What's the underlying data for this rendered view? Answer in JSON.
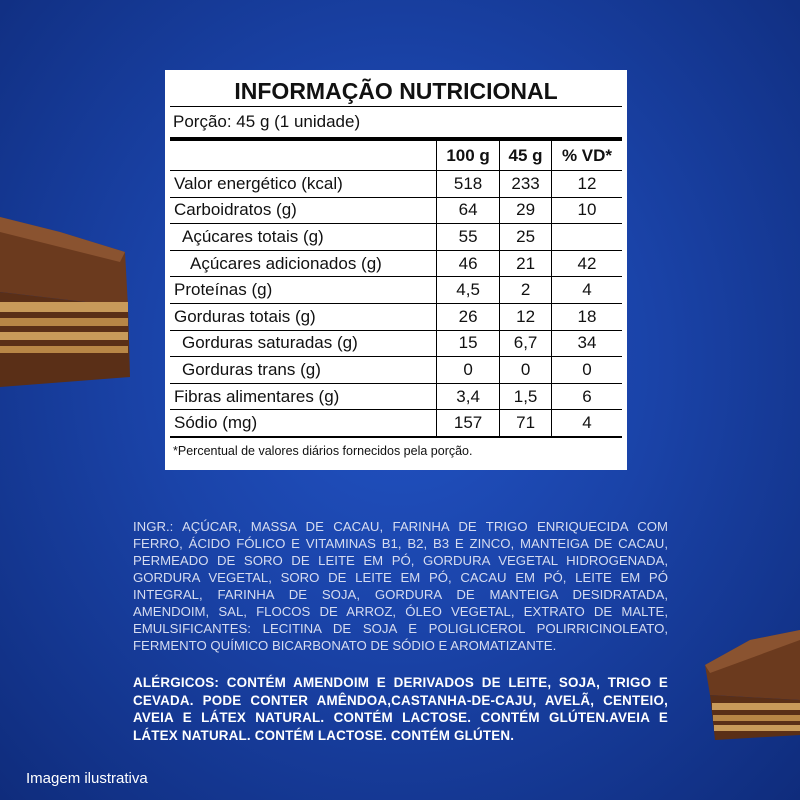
{
  "table": {
    "title": "INFORMAÇÃO NUTRICIONAL",
    "portion": "Porção: 45 g (1 unidade)",
    "header": [
      "100 g",
      "45 g",
      "% VD*"
    ],
    "rows": [
      [
        "Valor energético (kcal)",
        518,
        233,
        12
      ],
      [
        "Carboidratos (g)",
        64,
        29,
        10
      ],
      [
        "Açúcares totais (g)",
        55,
        25,
        null
      ],
      [
        "Açúcares adicionados (g)",
        46,
        21,
        42
      ],
      [
        "Proteínas (g)",
        "4,5",
        2,
        4
      ],
      [
        "Gorduras totais (g)",
        26,
        12,
        18
      ],
      [
        "Gorduras saturadas (g)",
        15,
        "6,7",
        34
      ],
      [
        "Gorduras trans (g)",
        0,
        0,
        0
      ],
      [
        "Fibras alimentares (g)",
        "3,4",
        "1,5",
        6
      ],
      [
        "Sódio (mg)",
        157,
        71,
        4
      ]
    ],
    "footnote": "*Percentual de valores diários fornecidos pela porção."
  },
  "ingredients": "INGR.: AÇÚCAR, MASSA DE CACAU, FARINHA DE TRIGO ENRIQUECIDA COM FERRO, ÁCIDO FÓLICO E VITAMINAS B1, B2, B3 E ZINCO, MANTEIGA DE CACAU, PERMEADO DE SORO DE LEITE EM PÓ, GORDURA VEGETAL HIDROGENADA, GORDURA VEGETAL, SORO DE LEITE EM PÓ, CACAU EM PÓ, LEITE EM PÓ INTEGRAL, FARINHA DE SOJA, GORDURA DE MANTEIGA DESIDRATADA, AMENDOIM, SAL, FLOCOS DE ARROZ, ÓLEO VEGETAL, EXTRATO DE MALTE, EMULSIFICANTES: LECITINA DE SOJA E POLIGLICEROL POLIRRICINOLEATO, FERMENTO QUÍMICO BICARBONATO DE SÓDIO E AROMATIZANTE.",
  "allergens": "ALÉRGICOS: CONTÉM AMENDOIM E DERIVADOS DE LEITE, SOJA, TRIGO E CEVADA. PODE CONTER AMÊNDOA,CASTANHA-DE-CAJU, AVELÃ, CENTEIO, AVEIA E LÁTEX NATURAL. CONTÉM LACTOSE. CONTÉM GLÚTEN.AVEIA E LÁTEX NATURAL. CONTÉM LACTOSE. CONTÉM GLÚTEN.",
  "caption": "Imagem ilustrativa"
}
